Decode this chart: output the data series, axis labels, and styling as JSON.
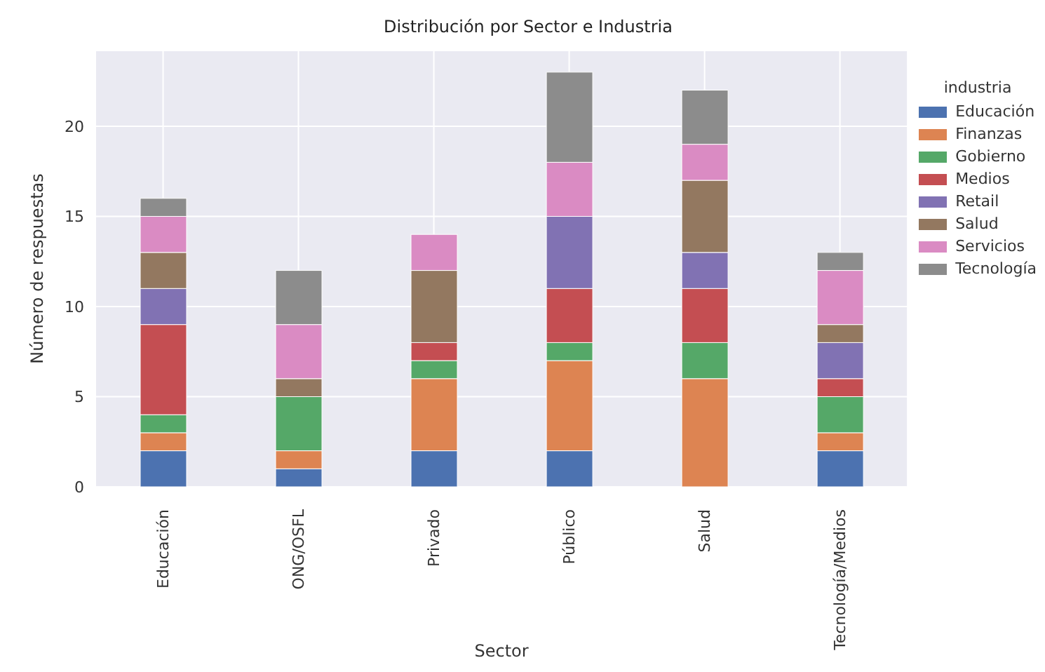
{
  "chart_data": {
    "type": "bar",
    "title": "Distribución por Sector e Industria",
    "xlabel": "Sector",
    "ylabel": "Número de respuestas",
    "legend_title": "industria",
    "categories": [
      "Educación",
      "ONG/OSFL",
      "Privado",
      "Público",
      "Salud",
      "Tecnología/Medios"
    ],
    "stacked": true,
    "ylim": [
      0,
      24.2
    ],
    "yticks": [
      0,
      5,
      10,
      15,
      20
    ],
    "grid": true,
    "legend": "right",
    "series": [
      {
        "name": "Educación",
        "color": "#4c72b0",
        "values": [
          2,
          1,
          2,
          2,
          0,
          2
        ]
      },
      {
        "name": "Finanzas",
        "color": "#dd8452",
        "values": [
          1,
          1,
          4,
          5,
          6,
          1
        ]
      },
      {
        "name": "Gobierno",
        "color": "#55a868",
        "values": [
          1,
          3,
          1,
          1,
          2,
          2
        ]
      },
      {
        "name": "Medios",
        "color": "#c44e52",
        "values": [
          5,
          0,
          1,
          3,
          3,
          1
        ]
      },
      {
        "name": "Retail",
        "color": "#8172b3",
        "values": [
          2,
          0,
          0,
          4,
          2,
          2
        ]
      },
      {
        "name": "Salud",
        "color": "#937860",
        "values": [
          2,
          1,
          4,
          0,
          4,
          1
        ]
      },
      {
        "name": "Servicios",
        "color": "#da8bc3",
        "values": [
          2,
          3,
          2,
          3,
          2,
          3
        ]
      },
      {
        "name": "Tecnología",
        "color": "#8c8c8c",
        "values": [
          1,
          3,
          0,
          5,
          3,
          1
        ]
      }
    ]
  }
}
